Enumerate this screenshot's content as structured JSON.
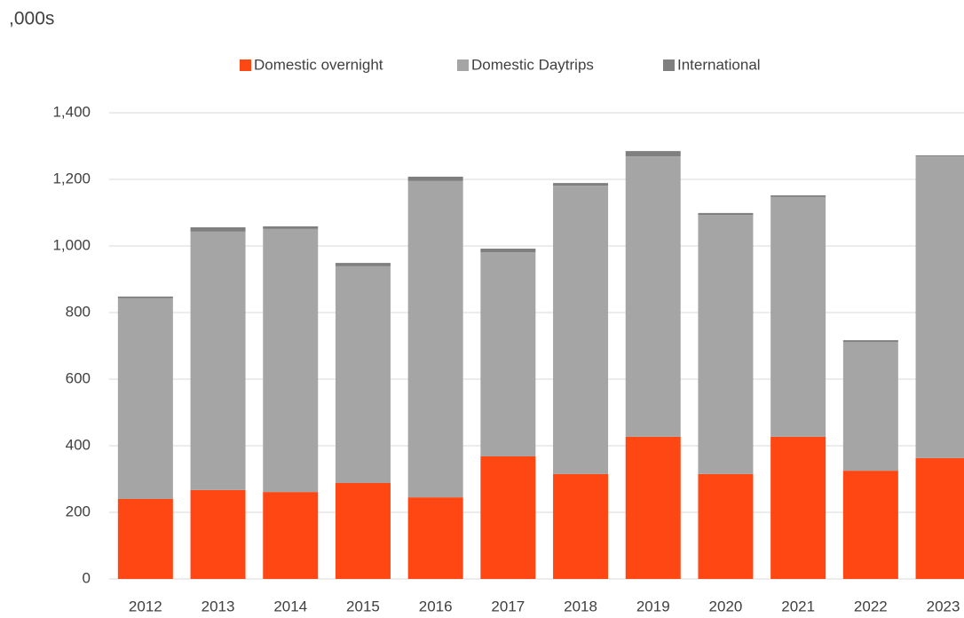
{
  "chart_data": {
    "type": "stacked_bar",
    "axis_label": ",000s",
    "categories": [
      "2012",
      "2013",
      "2014",
      "2015",
      "2016",
      "2017",
      "2018",
      "2019",
      "2020",
      "2021",
      "2022",
      "2023"
    ],
    "series": [
      {
        "name": "Domestic overnight",
        "color": "#ff4713",
        "values": [
          240,
          267,
          261,
          288,
          245,
          368,
          315,
          427,
          315,
          427,
          325,
          363
        ]
      },
      {
        "name": "Domestic Daytrips",
        "color": "#a5a5a5",
        "values": [
          603,
          776,
          790,
          651,
          950,
          613,
          866,
          842,
          778,
          720,
          387,
          906
        ]
      },
      {
        "name": "International",
        "color": "#7f7f7f",
        "values": [
          5,
          13,
          8,
          10,
          13,
          11,
          8,
          16,
          6,
          5,
          5,
          3
        ]
      }
    ],
    "ylim": [
      0,
      1400
    ],
    "yticks": [
      0,
      200,
      400,
      600,
      800,
      {
        "value": 1000,
        "label": "1,000"
      },
      {
        "value": 1200,
        "label": "1,200"
      },
      {
        "value": 1400,
        "label": "1,400"
      }
    ],
    "grid": true
  }
}
